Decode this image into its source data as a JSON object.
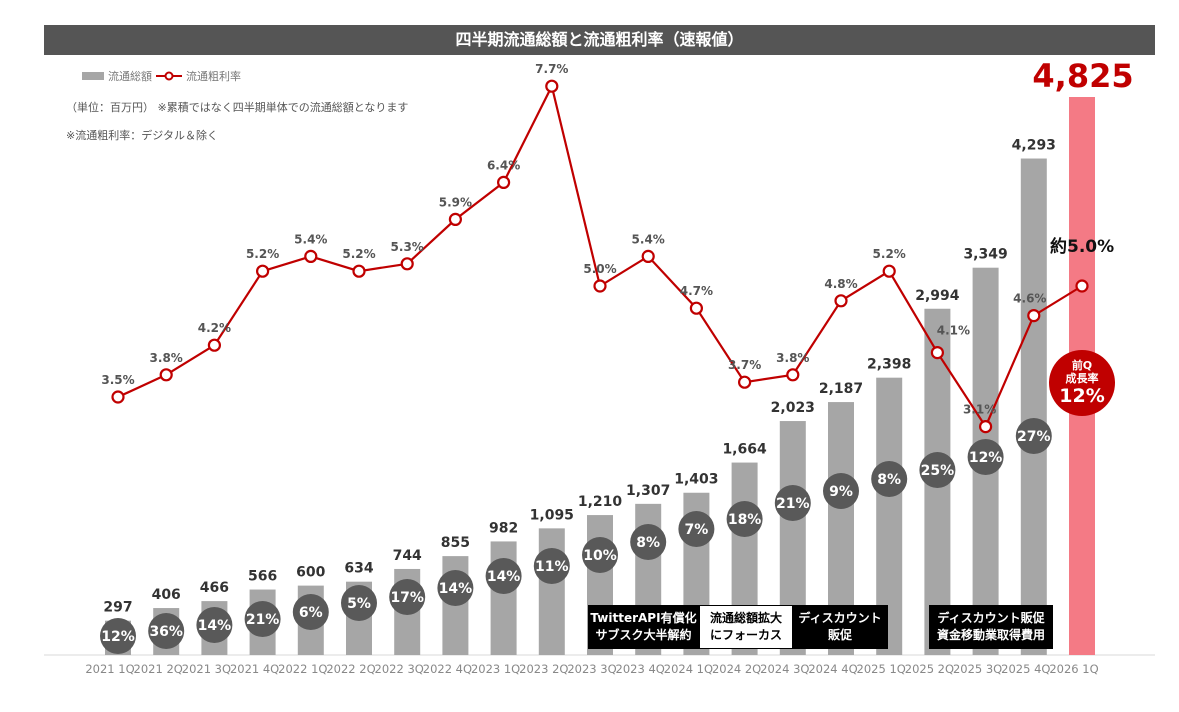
{
  "title": "四半期流通総額と流通粗利率（速報値）",
  "legend": {
    "bar": "流通総額",
    "line": "流通粗利率"
  },
  "notes": [
    "（単位：百万円） ※累積ではなく四半期単体での流通総額となります",
    "※流通粗利率：デジタル＆除く"
  ],
  "highlight": {
    "latest_value": "4,825",
    "latest_rate": "約5.0%",
    "growth_line1": "前Q",
    "growth_line2": "成長率",
    "growth_value": "12%"
  },
  "annotations": [
    {
      "text": "TwitterAPI有償化\nサブスク大半解約",
      "style": "dark"
    },
    {
      "text": "流通総額拡大\nにフォーカス",
      "style": "light"
    },
    {
      "text": "ディスカウント\n販促",
      "style": "dark"
    },
    {
      "text": "ディスカウント販促\n資金移動業取得費用",
      "style": "dark"
    }
  ],
  "chart_data": {
    "type": "bar+line",
    "title": "四半期流通総額と流通粗利率（速報値）",
    "categories": [
      "2021 1Q",
      "2021 2Q",
      "2021 3Q",
      "2021 4Q",
      "2022 1Q",
      "2022 2Q",
      "2022 3Q",
      "2022 4Q",
      "2023 1Q",
      "2023 2Q",
      "2023 3Q",
      "2023 4Q",
      "2024 1Q",
      "2024 2Q",
      "2024 3Q",
      "2024 4Q",
      "2025 1Q",
      "2025 2Q",
      "2025 3Q",
      "2025 4Q",
      "2026 1Q"
    ],
    "series": [
      {
        "name": "流通総額",
        "type": "bar",
        "values": [
          297,
          406,
          466,
          566,
          600,
          634,
          744,
          855,
          982,
          1095,
          1210,
          1307,
          1403,
          1664,
          2023,
          2187,
          2398,
          2994,
          3349,
          4293,
          4825
        ],
        "labels": [
          "297",
          "406",
          "466",
          "566",
          "600",
          "634",
          "744",
          "855",
          "982",
          "1,095",
          "1,210",
          "1,307",
          "1,403",
          "1,664",
          "2,023",
          "2,187",
          "2,398",
          "2,994",
          "3,349",
          "4,293",
          "4,825"
        ],
        "color": "#a6a6a6",
        "highlight_color": "#f47a85"
      },
      {
        "name": "流通粗利率",
        "type": "line",
        "values": [
          3.5,
          3.8,
          4.2,
          5.2,
          5.4,
          5.2,
          5.3,
          5.9,
          6.4,
          7.7,
          5.0,
          5.4,
          4.7,
          3.7,
          3.8,
          4.8,
          5.2,
          4.1,
          3.1,
          4.6,
          5.0
        ],
        "labels": [
          "3.5%",
          "3.8%",
          "4.2%",
          "5.2%",
          "5.4%",
          "5.2%",
          "5.3%",
          "5.9%",
          "6.4%",
          "7.7%",
          "5.0%",
          "5.4%",
          "4.7%",
          "3.7%",
          "3.8%",
          "4.8%",
          "5.2%",
          "4.1%",
          "3.1%",
          "4.6%",
          ""
        ],
        "color": "#c00000"
      }
    ],
    "yoy_growth": [
      "12%",
      "36%",
      "14%",
      "21%",
      "6%",
      "5%",
      "17%",
      "14%",
      "14%",
      "11%",
      "10%",
      "8%",
      "7%",
      "18%",
      "21%",
      "9%",
      "8%",
      "25%",
      "12%",
      "27%"
    ],
    "yoy_color": "#595959"
  }
}
